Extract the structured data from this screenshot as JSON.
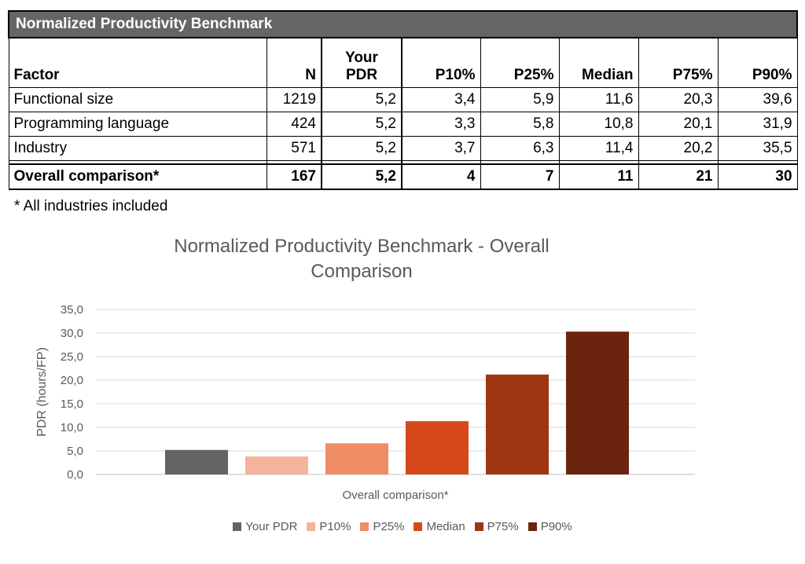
{
  "table": {
    "title": "Normalized Productivity Benchmark",
    "headers": [
      "Factor",
      "N",
      "Your PDR",
      "P10%",
      "P25%",
      "Median",
      "P75%",
      "P90%"
    ],
    "header_pdr_line1": "Your",
    "header_pdr_line2": "PDR",
    "rows": [
      {
        "factor": "Functional size",
        "n": "1219",
        "pdr": "5,2",
        "p10": "3,4",
        "p25": "5,9",
        "median": "11,6",
        "p75": "20,3",
        "p90": "39,6"
      },
      {
        "factor": "Programming language",
        "n": "424",
        "pdr": "5,2",
        "p10": "3,3",
        "p25": "5,8",
        "median": "10,8",
        "p75": "20,1",
        "p90": "31,9"
      },
      {
        "factor": "Industry",
        "n": "571",
        "pdr": "5,2",
        "p10": "3,7",
        "p25": "6,3",
        "median": "11,4",
        "p75": "20,2",
        "p90": "35,5"
      }
    ],
    "total": {
      "factor": "Overall comparison*",
      "n": "167",
      "pdr": "5,2",
      "p10": "4",
      "p25": "7",
      "median": "11",
      "p75": "21",
      "p90": "30"
    },
    "footnote": "* All industries included"
  },
  "chart_data": {
    "type": "bar",
    "title": "Normalized Productivity Benchmark - Overall Comparison",
    "title_line1": "Normalized Productivity Benchmark - Overall",
    "title_line2": "Comparison",
    "categories": [
      "Overall comparison*"
    ],
    "xlabel": "Overall comparison*",
    "ylabel": "PDR (hours/FP)",
    "ylim": [
      0,
      35
    ],
    "yticks": [
      "0,0",
      "5,0",
      "10,0",
      "15,0",
      "20,0",
      "25,0",
      "30,0",
      "35,0"
    ],
    "grid": true,
    "legend_position": "bottom",
    "series": [
      {
        "name": "Your PDR",
        "values": [
          5.2
        ],
        "color": "#636363"
      },
      {
        "name": "P10%",
        "values": [
          3.8
        ],
        "color": "#f4b49c"
      },
      {
        "name": "P25%",
        "values": [
          6.6
        ],
        "color": "#ef8c64"
      },
      {
        "name": "Median",
        "values": [
          11.3
        ],
        "color": "#d4481a"
      },
      {
        "name": "P75%",
        "values": [
          21.2
        ],
        "color": "#9e3614"
      },
      {
        "name": "P90%",
        "values": [
          30.3
        ],
        "color": "#6b240d"
      }
    ]
  }
}
